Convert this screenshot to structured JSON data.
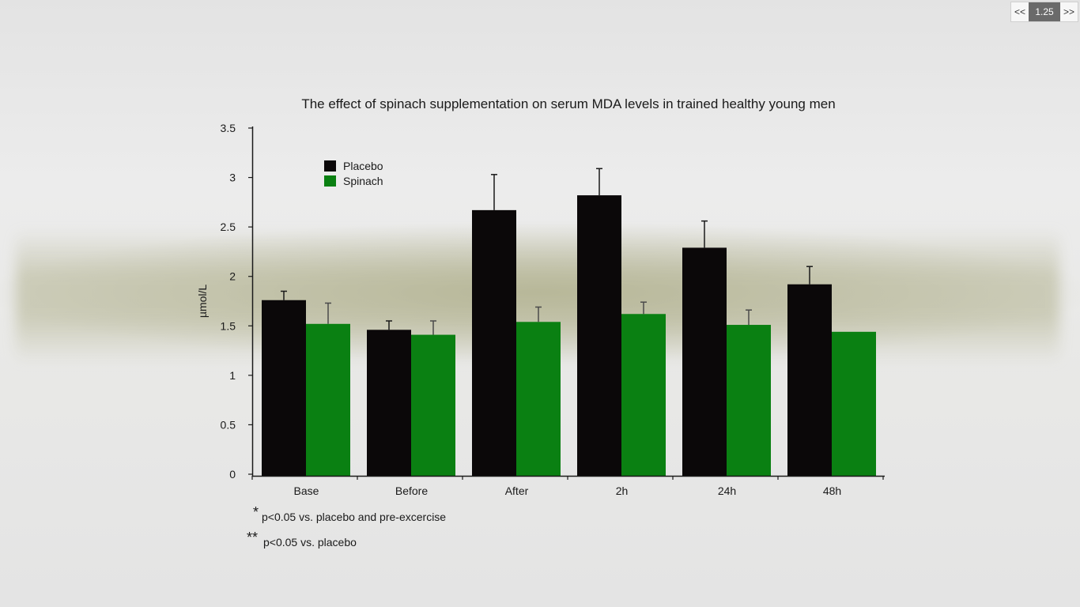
{
  "player": {
    "prev_label": "<<",
    "speed": "1.25",
    "next_label": ">>"
  },
  "colors": {
    "placebo": "#0b0809",
    "spinach": "#0a8012"
  },
  "chart_data": {
    "type": "bar",
    "title": "The effect of spinach supplementation on serum MDA levels in trained healthy young men",
    "xlabel": "",
    "ylabel": "µmol/L",
    "ylim": [
      0,
      3.5
    ],
    "yticks": [
      "0",
      "0.5",
      "1",
      "1.5",
      "2",
      "2.5",
      "3",
      "3.5"
    ],
    "categories": [
      "Base",
      "Before",
      "After",
      "2h",
      "24h",
      "48h"
    ],
    "legend_position": "top-left",
    "grid": false,
    "series": [
      {
        "name": "Placebo",
        "color": "#0b0809",
        "values": [
          1.76,
          1.46,
          2.67,
          2.82,
          2.29,
          1.92
        ],
        "errors": [
          0.09,
          0.09,
          0.36,
          0.27,
          0.27,
          0.18
        ]
      },
      {
        "name": "Spinach",
        "color": "#0a8012",
        "values": [
          1.52,
          1.41,
          1.54,
          1.62,
          1.51,
          1.44
        ],
        "errors": [
          0.21,
          0.14,
          0.15,
          0.12,
          0.15,
          0
        ]
      }
    ]
  },
  "footnotes": [
    {
      "mark": "*",
      "text": "p<0.05 vs. placebo and pre-excercise"
    },
    {
      "mark": "**",
      "text": "p<0.05 vs. placebo"
    }
  ]
}
